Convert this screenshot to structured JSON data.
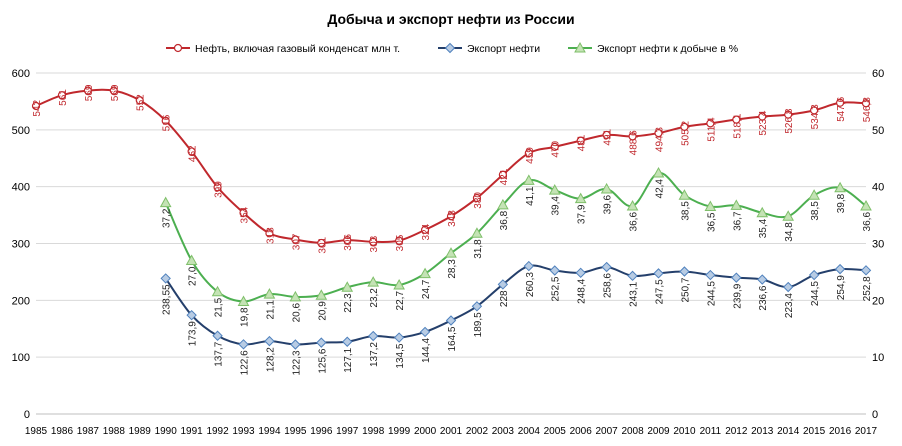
{
  "chart_data": {
    "type": "line",
    "title": "Добыча и экспорт нефти из России",
    "x": [
      "1985",
      "1986",
      "1987",
      "1988",
      "1989",
      "1990",
      "1991",
      "1992",
      "1993",
      "1994",
      "1995",
      "1996",
      "1997",
      "1998",
      "1999",
      "2000",
      "2001",
      "2002",
      "2003",
      "2004",
      "2005",
      "2006",
      "2007",
      "2008",
      "2009",
      "2010",
      "2011",
      "2012",
      "2013",
      "2014",
      "2015",
      "2016",
      "2017"
    ],
    "y_left": {
      "ticks": [
        0,
        100,
        200,
        300,
        400,
        500,
        600
      ],
      "range": [
        0,
        600
      ]
    },
    "y_right": {
      "ticks": [
        0,
        10,
        20,
        30,
        40,
        50,
        60
      ],
      "range": [
        0,
        60
      ]
    },
    "grid": "horizontal",
    "legend": "top",
    "series": [
      {
        "name": "Нефть, включая газовый конденсат млн т.",
        "axis": "left",
        "color": "#c0282d",
        "marker": "circle",
        "values": [
          542,
          561,
          569,
          569,
          552,
          516,
          462,
          399,
          354,
          318,
          307,
          301,
          306,
          303,
          305,
          324,
          348,
          380,
          421,
          459,
          470,
          481,
          491,
          488.6,
          494.3,
          505.2,
          511.4,
          518.1,
          523.4,
          526.8,
          534.3,
          547.6,
          546.8
        ],
        "labels": [
          "542",
          "561",
          "569",
          "569",
          "552",
          "516",
          "462",
          "399",
          "354",
          "318",
          "307",
          "301",
          "306",
          "303",
          "305",
          "324",
          "348",
          "380",
          "421",
          "459",
          "470",
          "481",
          "491",
          "488,6",
          "494,3",
          "505,2",
          "511,4",
          "518,1",
          "523,4",
          "526,8",
          "534,3",
          "547,6",
          "546,8"
        ]
      },
      {
        "name": "Экспорт нефти",
        "axis": "left",
        "color": "#243f6b",
        "marker": "diamond",
        "values": [
          null,
          null,
          null,
          null,
          null,
          238.55,
          173.9,
          137.7,
          122.6,
          128.2,
          122.3,
          125.6,
          127.1,
          137.2,
          134.5,
          144.4,
          164.5,
          189.5,
          228,
          260.3,
          252.5,
          248.4,
          258.6,
          243.1,
          247.5,
          250.7,
          244.5,
          239.9,
          236.6,
          223.4,
          244.5,
          254.9,
          252.8
        ],
        "labels": [
          null,
          null,
          null,
          null,
          null,
          "238,55",
          "173,9",
          "137,7",
          "122,6",
          "128,2",
          "122,3",
          "125,6",
          "127,1",
          "137,2",
          "134,5",
          "144,4",
          "164,5",
          "189,5",
          "228",
          "260,3",
          "252,5",
          "248,4",
          "258,6",
          "243,1",
          "247,5",
          "250,7",
          "244,5",
          "239,9",
          "236,6",
          "223,4",
          "244,5",
          "254,9",
          "252,8"
        ]
      },
      {
        "name": "Экспорт нефти к добыче в %",
        "axis": "right",
        "color": "#4caf50",
        "marker": "triangle",
        "values": [
          null,
          null,
          null,
          null,
          null,
          37.2,
          27.0,
          21.5,
          19.8,
          21.1,
          20.6,
          20.9,
          22.3,
          23.2,
          22.7,
          24.7,
          28.3,
          31.8,
          36.8,
          41.1,
          39.4,
          37.9,
          39.6,
          36.6,
          42.4,
          38.5,
          36.5,
          36.7,
          35.4,
          34.8,
          38.5,
          39.8,
          36.6
        ],
        "labels": [
          null,
          null,
          null,
          null,
          null,
          "37,2",
          "27,0",
          "21,5",
          "19,8",
          "21,1",
          "20,6",
          "20,9",
          "22,3",
          "23,2",
          "22,7",
          "24,7",
          "28,3",
          "31,8",
          "36,8",
          "41,1",
          "39,4",
          "37,9",
          "39,6",
          "36,6",
          "42,4",
          "38,5",
          "36,5",
          "36,7",
          "35,4",
          "34,8",
          "38,5",
          "39,8",
          "36,6"
        ]
      }
    ]
  }
}
